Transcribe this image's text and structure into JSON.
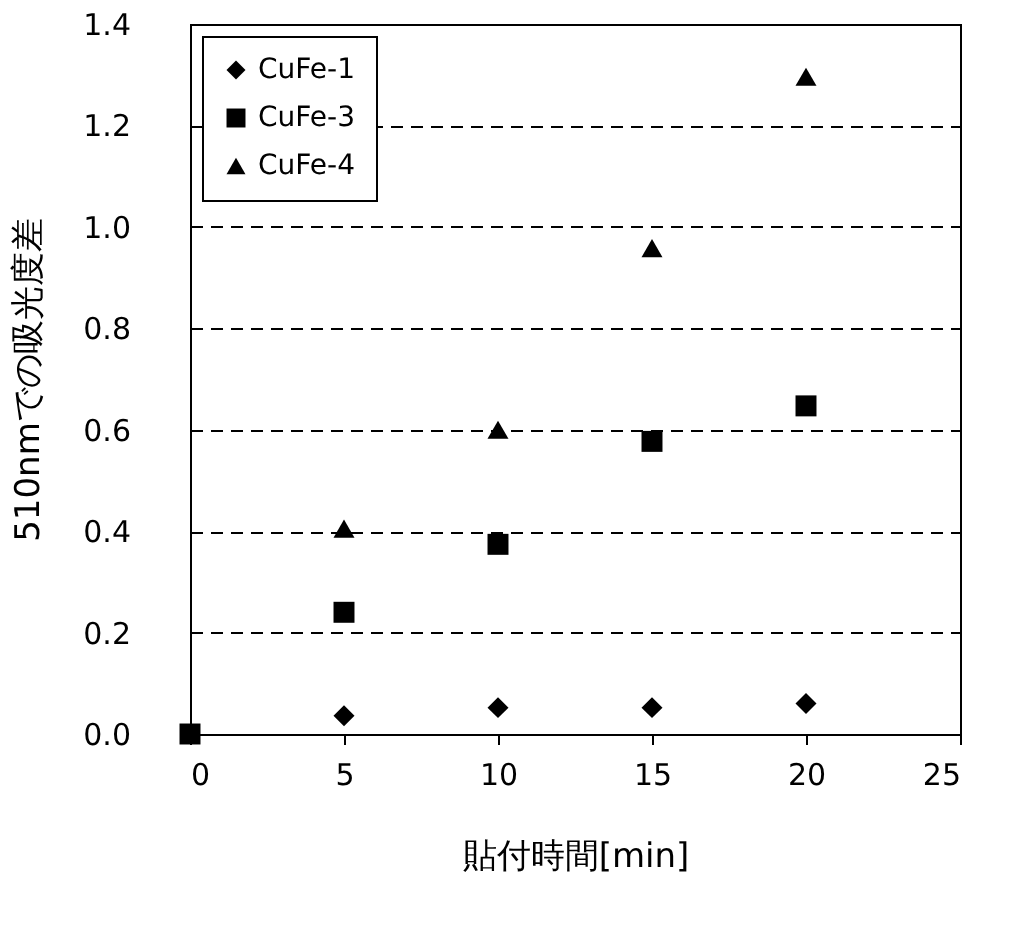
{
  "chart_data": {
    "type": "scatter",
    "xlabel": "貼付時間[min]",
    "ylabel": "510nmでの吸光度差",
    "series": [
      {
        "name": "CuFe-1",
        "color": "#000000",
        "marker": "diamond",
        "x": [
          5,
          10,
          15,
          20
        ],
        "values": [
          0.036,
          0.052,
          0.052,
          0.06
        ]
      },
      {
        "name": "CuFe-3",
        "color": "#000000",
        "marker": "square",
        "x": [
          0,
          5,
          10,
          15,
          20
        ],
        "values": [
          0,
          0.24,
          0.374,
          0.577,
          0.647
        ]
      },
      {
        "name": "CuFe-4",
        "color": "#000000",
        "marker": "triangle",
        "x": [
          5,
          10,
          15,
          20
        ],
        "values": [
          0.405,
          0.6,
          0.958,
          1.296
        ]
      }
    ],
    "xlim": [
      0,
      25
    ],
    "xticks": [
      0,
      5,
      10,
      15,
      20,
      25
    ],
    "ylim": [
      0,
      1.4
    ],
    "yticks": [
      {
        "value": 0,
        "label": "0.0"
      },
      0.2,
      0.4,
      0.6,
      0.8,
      {
        "value": 1,
        "label": "1.0"
      },
      1.2,
      1.4
    ],
    "grid": "y",
    "legend": "top left"
  }
}
